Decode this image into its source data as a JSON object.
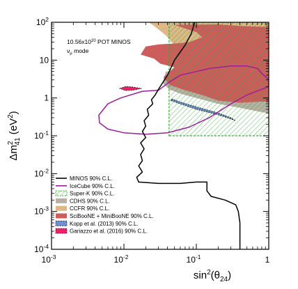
{
  "chart_data": {
    "type": "area",
    "xscale": "log",
    "yscale": "log",
    "xlim": [
      0.001,
      1
    ],
    "ylim": [
      0.0001,
      100
    ],
    "grid": false,
    "legend_position": "bottom-left",
    "xlabel_main": "sin",
    "xlabel_sup": "2",
    "xlabel_rest": "(θ",
    "xlabel_sub": "24",
    "xlabel_close": ")",
    "ylabel_main": "Δm",
    "ylabel_sup": "2",
    "ylabel_sub": "41",
    "ylabel_rest": " (eV",
    "ylabel_sup2": "2",
    "ylabel_close": ")",
    "annotation_line1_pre": "10.56x10",
    "annotation_line1_sup": "20",
    "annotation_line1_post": " POT MINOS",
    "annotation_line2_pre": "ν",
    "annotation_line2_sub": "μ",
    "annotation_line2_post": " mode",
    "x_ticks": [
      {
        "value": 0.001,
        "base": "10",
        "exp": "-3"
      },
      {
        "value": 0.01,
        "base": "10",
        "exp": "-2"
      },
      {
        "value": 0.1,
        "base": "10",
        "exp": "-1"
      },
      {
        "value": 1,
        "label": "1"
      }
    ],
    "y_ticks": [
      {
        "value": 0.0001,
        "base": "10",
        "exp": "-4"
      },
      {
        "value": 0.001,
        "base": "10",
        "exp": "-3"
      },
      {
        "value": 0.01,
        "base": "10",
        "exp": "-2"
      },
      {
        "value": 0.1,
        "base": "10",
        "exp": "-1"
      },
      {
        "value": 1,
        "label": "1"
      },
      {
        "value": 10,
        "label": "10"
      },
      {
        "value": 100,
        "base": "10",
        "exp": "2"
      }
    ],
    "legend": [
      {
        "label": "MINOS 90% C.L.",
        "style": "line",
        "color": "#000000"
      },
      {
        "label": "IceCube 90% C.L.",
        "style": "line",
        "color": "#9b1f9b"
      },
      {
        "label": "Super-K 90% C.L.",
        "style": "hatch",
        "color": "#33aa33"
      },
      {
        "label": "CDHS 90% C.L.",
        "style": "fill",
        "color": "#b8b0a4"
      },
      {
        "label": "CCFR 90% C.L.",
        "style": "fill",
        "color": "#deb887"
      },
      {
        "label": "SciBooNE + MiniBooNE 90% C.L.",
        "style": "fill",
        "color": "#cd5c5c"
      },
      {
        "label": "Kopp et al. (2013) 90% C.L.",
        "style": "dashfill",
        "color": "#6f8fd2"
      },
      {
        "label": "Gariazzo et al. (2016) 90% C.L.",
        "style": "dashfill",
        "color": "#f0206a"
      }
    ],
    "series": [
      {
        "name": "CCFR 90% C.L.",
        "kind": "fill",
        "color": "#deb887",
        "points": [
          [
            0.022,
            100
          ],
          [
            1,
            100
          ],
          [
            1,
            3
          ],
          [
            0.6,
            4
          ],
          [
            0.3,
            4
          ],
          [
            0.18,
            5
          ],
          [
            0.09,
            12
          ],
          [
            0.055,
            20
          ],
          [
            0.038,
            45
          ],
          [
            0.026,
            80
          ]
        ]
      },
      {
        "name": "CDHS 90% C.L.",
        "kind": "fill",
        "color": "#b8b0a4",
        "points": [
          [
            0.038,
            5
          ],
          [
            0.034,
            2.5
          ],
          [
            0.042,
            1.7
          ],
          [
            0.06,
            1.3
          ],
          [
            0.1,
            1.0
          ],
          [
            0.2,
            0.7
          ],
          [
            0.4,
            0.55
          ],
          [
            0.8,
            0.42
          ],
          [
            1,
            0.4
          ],
          [
            1,
            5
          ],
          [
            0.2,
            5
          ],
          [
            0.1,
            6
          ],
          [
            0.06,
            5.5
          ]
        ]
      },
      {
        "name": "SciBooNE + MiniBooNE 90% C.L.",
        "kind": "fill",
        "color": "#cd5c5c",
        "points": [
          [
            0.05,
            85
          ],
          [
            0.1,
            55
          ],
          [
            0.12,
            40
          ],
          [
            0.08,
            30
          ],
          [
            0.06,
            28
          ],
          [
            0.03,
            26
          ],
          [
            0.02,
            23
          ],
          [
            0.017,
            14
          ],
          [
            0.026,
            11
          ],
          [
            0.032,
            8
          ],
          [
            0.05,
            6.5
          ],
          [
            0.035,
            3.5
          ],
          [
            0.043,
            2.2
          ],
          [
            0.07,
            1.6
          ],
          [
            0.12,
            1.2
          ],
          [
            0.2,
            0.85
          ],
          [
            0.4,
            0.75
          ],
          [
            0.8,
            0.8
          ],
          [
            1,
            0.8
          ],
          [
            1,
            75
          ],
          [
            0.4,
            80
          ],
          [
            0.2,
            88
          ]
        ]
      },
      {
        "name": "Kopp et al. (2013) 90% C.L.",
        "kind": "dashfill",
        "color": "#6f8fd2",
        "points": [
          [
            0.045,
            0.85
          ],
          [
            0.06,
            0.7
          ],
          [
            0.1,
            0.5
          ],
          [
            0.2,
            0.36
          ],
          [
            0.3,
            0.28
          ],
          [
            0.35,
            0.25
          ],
          [
            0.3,
            0.3
          ],
          [
            0.2,
            0.4
          ],
          [
            0.1,
            0.58
          ],
          [
            0.06,
            0.78
          ],
          [
            0.045,
            0.95
          ]
        ]
      },
      {
        "name": "Gariazzo et al. (2016) 90% C.L.",
        "kind": "dashfill",
        "color": "#f0206a",
        "points": [
          [
            0.0088,
            1.78
          ],
          [
            0.0105,
            2.0
          ],
          [
            0.013,
            1.95
          ],
          [
            0.0175,
            1.78
          ],
          [
            0.013,
            1.6
          ],
          [
            0.0105,
            1.58
          ]
        ]
      },
      {
        "name": "Super-K 90% C.L.",
        "kind": "hatch",
        "color": "#33aa33",
        "points": [
          [
            0.042,
            0.1
          ],
          [
            1,
            0.1
          ],
          [
            1,
            100
          ],
          [
            0.042,
            100
          ]
        ]
      },
      {
        "name": "IceCube 90% C.L.",
        "kind": "line",
        "color": "#9b1f9b",
        "points": [
          [
            0.042,
            2.6
          ],
          [
            0.03,
            1.6
          ],
          [
            0.018,
            1.5
          ],
          [
            0.009,
            1.0
          ],
          [
            0.006,
            0.7
          ],
          [
            0.0045,
            0.35
          ],
          [
            0.0046,
            0.22
          ],
          [
            0.006,
            0.15
          ],
          [
            0.01,
            0.12
          ],
          [
            0.02,
            0.11
          ],
          [
            0.04,
            0.12
          ],
          [
            0.08,
            0.17
          ],
          [
            0.15,
            0.3
          ],
          [
            0.3,
            0.7
          ],
          [
            0.5,
            1.2
          ],
          [
            1,
            2.0
          ],
          [
            1,
            3.0
          ],
          [
            0.8,
            4.5
          ],
          [
            0.7,
            6
          ],
          [
            0.5,
            7
          ],
          [
            0.3,
            7
          ],
          [
            0.15,
            6
          ],
          [
            0.1,
            5
          ],
          [
            0.06,
            4
          ],
          [
            0.042,
            2.6
          ]
        ]
      },
      {
        "name": "MINOS 90% C.L.",
        "kind": "line",
        "color": "#000000",
        "points": [
          [
            0.095,
            100
          ],
          [
            0.085,
            50
          ],
          [
            0.07,
            25
          ],
          [
            0.05,
            10
          ],
          [
            0.04,
            4
          ],
          [
            0.03,
            1.7
          ],
          [
            0.027,
            1.2
          ],
          [
            0.024,
            0.9
          ],
          [
            0.025,
            0.7
          ],
          [
            0.021,
            0.5
          ],
          [
            0.022,
            0.35
          ],
          [
            0.019,
            0.25
          ],
          [
            0.02,
            0.18
          ],
          [
            0.018,
            0.13
          ],
          [
            0.02,
            0.09
          ],
          [
            0.017,
            0.065
          ],
          [
            0.019,
            0.045
          ],
          [
            0.017,
            0.032
          ],
          [
            0.018,
            0.022
          ],
          [
            0.016,
            0.016
          ],
          [
            0.018,
            0.011
          ],
          [
            0.015,
            0.008
          ],
          [
            0.016,
            0.006
          ],
          [
            0.03,
            0.0055
          ],
          [
            0.06,
            0.0055
          ],
          [
            0.1,
            0.006
          ],
          [
            0.14,
            0.006
          ],
          [
            0.14,
            0.0035
          ],
          [
            0.16,
            0.0025
          ],
          [
            0.25,
            0.002
          ],
          [
            0.35,
            0.0015
          ],
          [
            0.38,
            0.001
          ],
          [
            0.4,
            0.0005
          ],
          [
            0.4,
            0.0001
          ]
        ]
      }
    ]
  }
}
